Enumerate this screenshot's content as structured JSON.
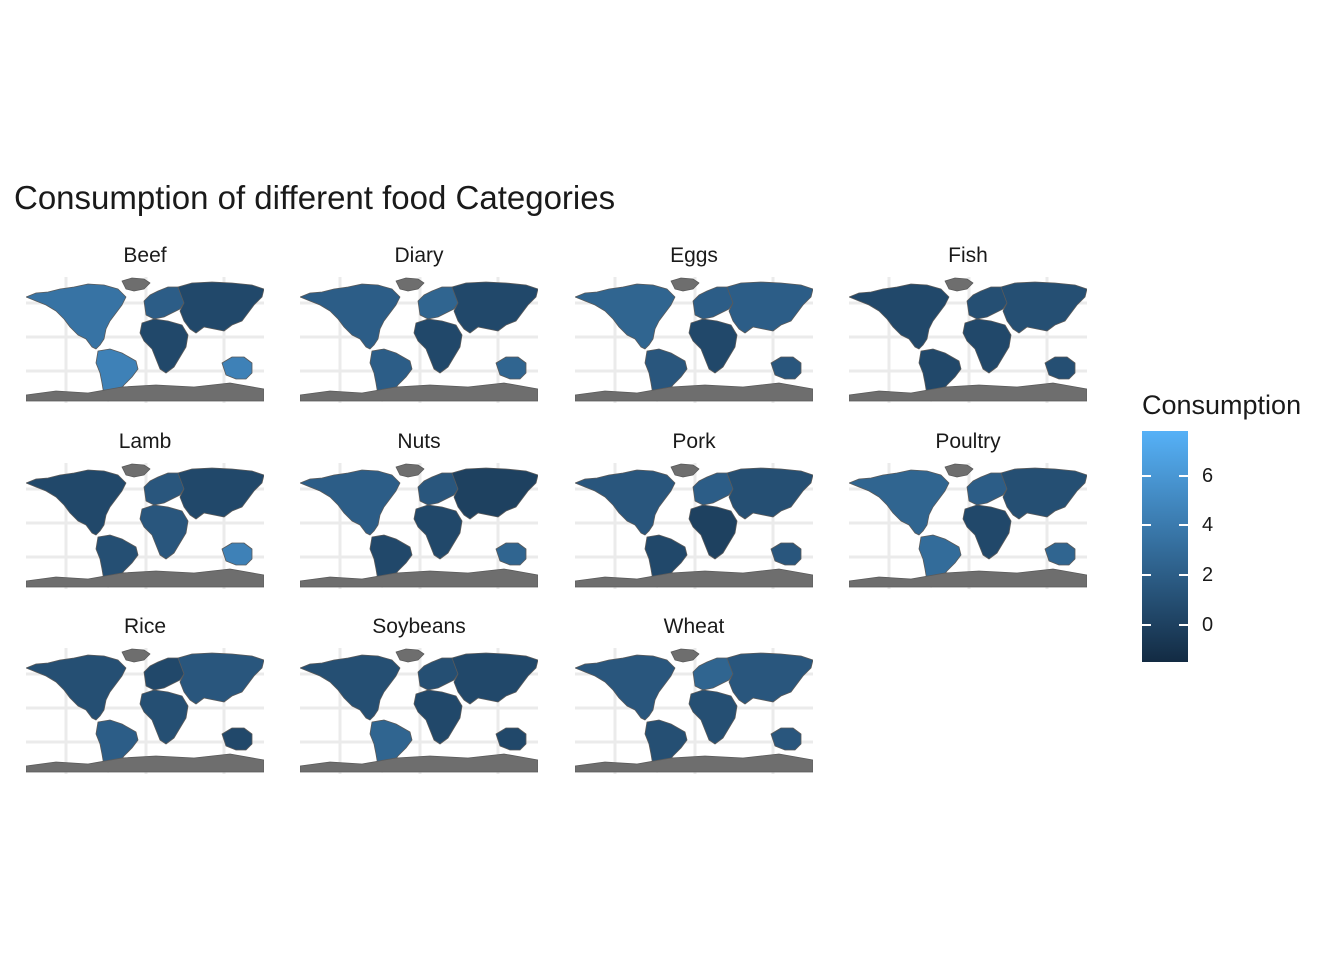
{
  "title": "Consumption of different food Categories",
  "legend": {
    "title": "Consumption",
    "breaks": [
      {
        "value": 6,
        "label": "6"
      },
      {
        "value": 4,
        "label": "4"
      },
      {
        "value": 2,
        "label": "2"
      },
      {
        "value": 0,
        "label": "0"
      }
    ],
    "range": [
      -1.5,
      7.8
    ],
    "colors": {
      "low": "#132B43",
      "high": "#56B1F7"
    }
  },
  "colors": {
    "missing": "#6e6e6e",
    "border": "#5a5a5a",
    "gridline": "#ebebeb",
    "background": "#ffffff"
  },
  "panels": [
    {
      "label": "Beef"
    },
    {
      "label": "Diary"
    },
    {
      "label": "Eggs"
    },
    {
      "label": "Fish"
    },
    {
      "label": "Lamb"
    },
    {
      "label": "Nuts"
    },
    {
      "label": "Pork"
    },
    {
      "label": "Poultry"
    },
    {
      "label": "Rice"
    },
    {
      "label": "Soybeans"
    },
    {
      "label": "Wheat"
    }
  ],
  "chart_data": {
    "type": "heatmap",
    "title": "Consumption of different food Categories",
    "facets": [
      "Beef",
      "Diary",
      "Eggs",
      "Fish",
      "Lamb",
      "Nuts",
      "Pork",
      "Poultry",
      "Rice",
      "Soybeans",
      "Wheat"
    ],
    "regions": [
      "North America",
      "South America",
      "Europe",
      "Asia",
      "Africa",
      "Oceania",
      "Greenland",
      "Antarctica"
    ],
    "fill_variable": "Consumption",
    "values": {
      "Beef": [
        3.5,
        4.5,
        2.0,
        0.5,
        0.5,
        4.5,
        null,
        null
      ],
      "Diary": [
        2.0,
        2.0,
        2.5,
        0.5,
        0.5,
        2.5,
        null,
        null
      ],
      "Eggs": [
        2.5,
        1.5,
        2.0,
        2.0,
        0.5,
        1.5,
        null,
        null
      ],
      "Fish": [
        0.5,
        0.5,
        1.0,
        1.0,
        0.5,
        1.0,
        null,
        null
      ],
      "Lamb": [
        0.5,
        1.0,
        1.5,
        0.5,
        1.5,
        4.5,
        null,
        null
      ],
      "Nuts": [
        2.0,
        0.5,
        1.5,
        0.0,
        0.5,
        2.5,
        null,
        null
      ],
      "Pork": [
        1.5,
        0.5,
        2.0,
        1.0,
        0.0,
        1.5,
        null,
        null
      ],
      "Poultry": [
        2.5,
        3.0,
        2.0,
        1.0,
        0.5,
        2.5,
        null,
        null
      ],
      "Rice": [
        1.0,
        2.0,
        0.5,
        1.5,
        1.0,
        0.5,
        null,
        null
      ],
      "Soybeans": [
        1.0,
        2.5,
        1.0,
        0.5,
        0.5,
        0.5,
        null,
        null
      ],
      "Wheat": [
        1.5,
        1.0,
        2.5,
        1.5,
        1.0,
        1.5,
        null,
        null
      ]
    },
    "legend_breaks": [
      0,
      2,
      4,
      6
    ],
    "legend_position": "right",
    "grid": true,
    "xlabel": "",
    "ylabel": ""
  }
}
